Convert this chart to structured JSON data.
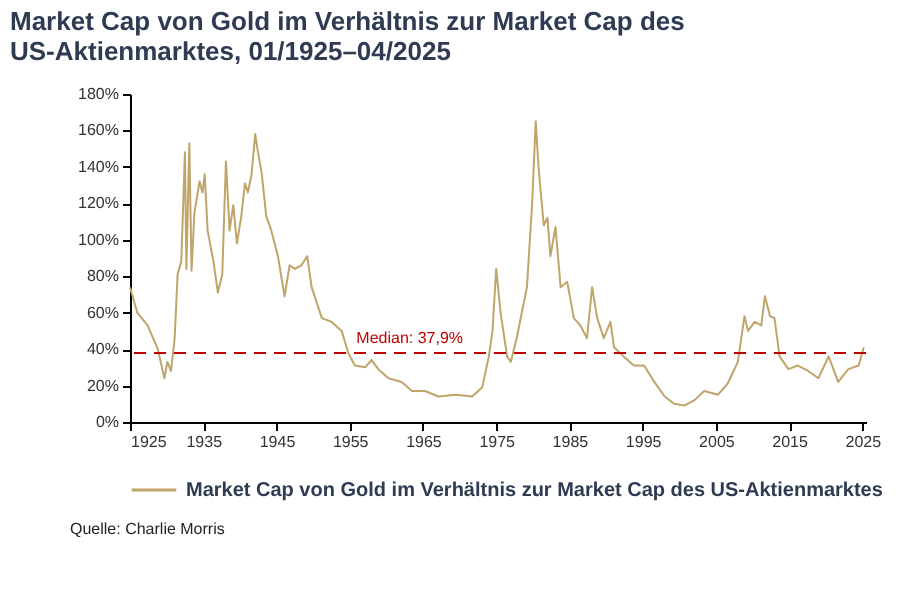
{
  "chart_data": {
    "type": "line",
    "title": "Market Cap von Gold im Verhältnis zur Market Cap des US-Aktienmarktes, 01/1925–04/2025",
    "x": [
      1925.0,
      1926.0,
      1927.4,
      1928.8,
      1929.7,
      1930.1,
      1930.6,
      1931.1,
      1931.5,
      1932.0,
      1932.5,
      1932.7,
      1933.1,
      1933.4,
      1933.8,
      1934.5,
      1934.9,
      1935.2,
      1935.6,
      1936.4,
      1937.0,
      1937.6,
      1938.1,
      1938.6,
      1939.1,
      1939.6,
      1940.2,
      1940.7,
      1941.1,
      1941.6,
      1942.1,
      1942.4,
      1943.0,
      1943.6,
      1944.3,
      1945.2,
      1946.1,
      1946.8,
      1947.5,
      1948.4,
      1949.2,
      1949.8,
      1951.2,
      1952.5,
      1953.9,
      1954.8,
      1955.7,
      1957.1,
      1958.0,
      1958.9,
      1960.3,
      1962.1,
      1963.5,
      1965.3,
      1967.1,
      1969.5,
      1971.7,
      1973.1,
      1974.0,
      1974.5,
      1975.0,
      1975.6,
      1976.5,
      1977.0,
      1977.8,
      1979.2,
      1979.9,
      1980.4,
      1980.8,
      1981.5,
      1982.0,
      1982.4,
      1983.1,
      1983.8,
      1984.7,
      1985.6,
      1986.5,
      1987.4,
      1988.1,
      1988.8,
      1989.7,
      1990.6,
      1991.1,
      1992.4,
      1993.8,
      1995.2,
      1996.6,
      1998.0,
      1999.3,
      2000.7,
      2002.1,
      2003.4,
      2005.3,
      2006.6,
      2008.0,
      2008.9,
      2009.4,
      2010.3,
      2011.2,
      2011.7,
      2012.4,
      2013.0,
      2013.7,
      2014.9,
      2016.2,
      2017.6,
      2019.0,
      2020.4,
      2021.7,
      2023.1,
      2024.5,
      2025.2
    ],
    "series": [
      {
        "name": "Market Cap von Gold im Verhältnis zur Market Cap des US-Aktienmarktes",
        "color": "#bfa56a",
        "values": [
          74,
          60,
          53,
          40,
          24,
          33,
          28,
          46,
          81,
          88,
          148,
          84,
          153,
          83,
          115,
          132,
          126,
          136,
          105,
          88,
          71,
          81,
          143,
          105,
          119,
          98,
          113,
          131,
          126,
          136,
          158,
          150,
          136,
          113,
          105,
          91,
          69,
          86,
          84,
          86,
          91,
          74,
          57,
          55,
          50,
          38,
          31,
          30,
          34,
          29,
          24,
          22,
          17,
          17,
          14,
          15,
          14,
          19,
          36,
          50,
          84,
          60,
          36,
          33,
          46,
          74,
          119,
          165,
          139,
          108,
          112,
          91,
          107,
          74,
          77,
          57,
          53,
          46,
          74,
          57,
          46,
          55,
          41,
          36,
          31,
          31,
          22,
          14,
          10,
          9,
          12,
          17,
          15,
          21,
          33,
          58,
          50,
          55,
          53,
          69,
          58,
          57,
          36,
          29,
          31,
          28,
          24,
          36,
          22,
          29,
          31,
          41
        ]
      }
    ],
    "xlim": [
      1925,
      2025.5
    ],
    "xticks": [
      1925,
      1935,
      1945,
      1955,
      1965,
      1975,
      1985,
      1995,
      2005,
      2015,
      2025
    ],
    "ylim": [
      0,
      180
    ],
    "yticks": [
      {
        "value": 0,
        "label": "0%"
      },
      {
        "value": 20,
        "label": "20%"
      },
      {
        "value": 40,
        "label": "40%"
      },
      {
        "value": 60,
        "label": "60%"
      },
      {
        "value": 80,
        "label": "80%"
      },
      {
        "value": 100,
        "label": "100%"
      },
      {
        "value": 120,
        "label": "120%"
      },
      {
        "value": 140,
        "label": "140%"
      },
      {
        "value": 160,
        "label": "160%"
      },
      {
        "value": 180,
        "label": "180%"
      }
    ],
    "ref_lines": [
      {
        "axis": "y",
        "value": 37.9,
        "label": "Median: 37,9%",
        "color": "#c00000",
        "line_style": "dashed"
      }
    ],
    "annotations": [
      "Quelle: Charlie Morris"
    ],
    "grid": false,
    "legend": "bottom",
    "marker": "none",
    "line_style": "solid"
  }
}
